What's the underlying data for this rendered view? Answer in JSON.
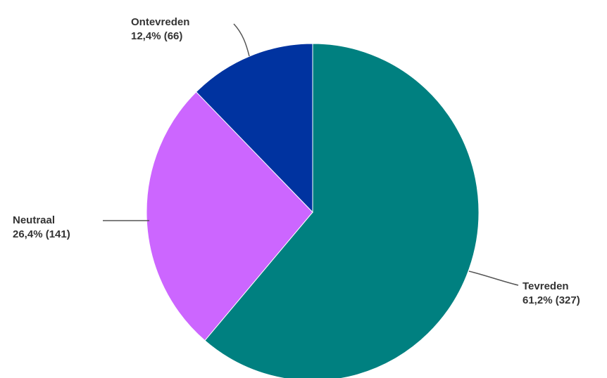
{
  "chart_data": {
    "type": "pie",
    "title": "",
    "slices": [
      {
        "name": "Tevreden",
        "percent_label": "61,2% (327)",
        "value": 327,
        "percent": 61.2,
        "color": "#008080"
      },
      {
        "name": "Neutraal",
        "percent_label": "26,4% (141)",
        "value": 141,
        "percent": 26.4,
        "color": "#cc66ff"
      },
      {
        "name": "Ontevreden",
        "percent_label": "12,4% (66)",
        "value": 66,
        "percent": 12.4,
        "color": "#0033a0"
      }
    ],
    "start_angle": "top, clockwise"
  }
}
